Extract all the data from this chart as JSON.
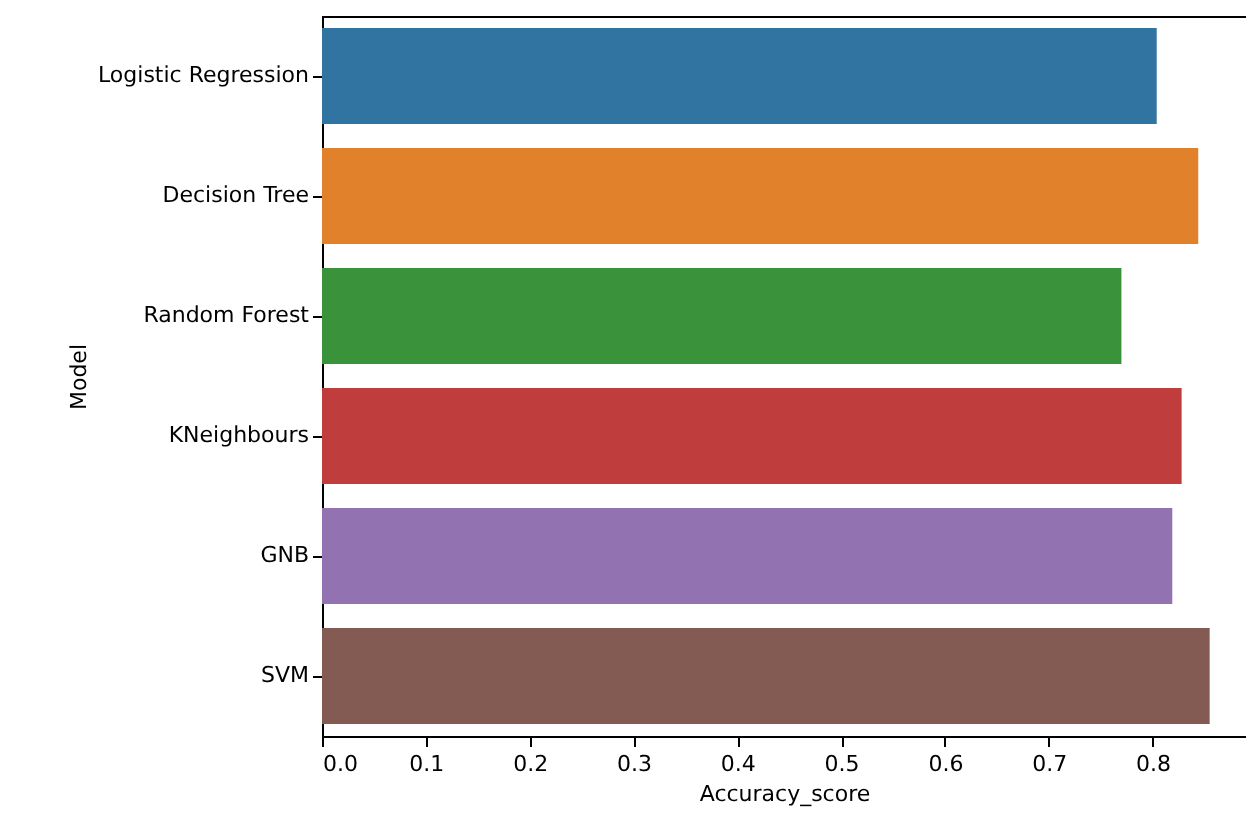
{
  "chart_data": {
    "type": "bar",
    "orientation": "horizontal",
    "xlabel": "Accuracy_score",
    "ylabel": "Model",
    "categories": [
      "Logistic Regression",
      "Decision Tree",
      "Random Forest",
      "KNeighbours",
      "GNB",
      "SVM"
    ],
    "values": [
      0.804,
      0.844,
      0.77,
      0.828,
      0.819,
      0.855
    ],
    "colors": [
      "#3274a1",
      "#e1812c",
      "#3a923a",
      "#c03d3e",
      "#9372b2",
      "#845b53"
    ],
    "xlim": [
      0,
      0.89
    ],
    "xticks": [
      {
        "value": 0,
        "label": "0.0"
      },
      0.1,
      0.2,
      0.3,
      0.4,
      0.5,
      0.6,
      0.7,
      0.8
    ],
    "grid": false
  }
}
